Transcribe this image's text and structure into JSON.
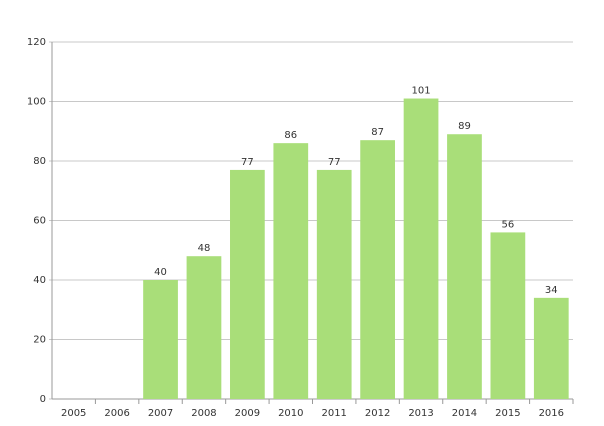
{
  "chart_data": {
    "type": "bar",
    "categories": [
      "2005",
      "2006",
      "2007",
      "2008",
      "2009",
      "2010",
      "2011",
      "2012",
      "2013",
      "2014",
      "2015",
      "2016"
    ],
    "values": [
      null,
      null,
      40,
      48,
      77,
      86,
      77,
      87,
      101,
      89,
      56,
      34
    ],
    "color": "#a9de79",
    "ylim": [
      0,
      120
    ],
    "yticks": [
      0,
      20,
      40,
      60,
      80,
      100,
      120
    ],
    "grid": true
  }
}
